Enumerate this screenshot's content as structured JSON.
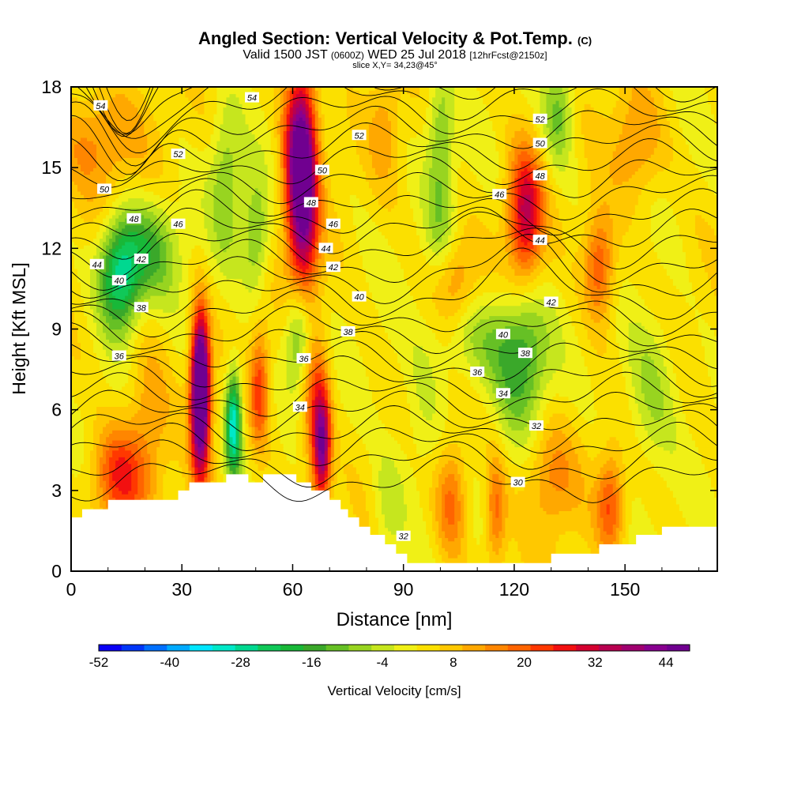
{
  "title": {
    "main": "Angled Section: Vertical Velocity & Pot.Temp.",
    "main_unit": "(C)",
    "valid_prefix": "Valid 1500 JST",
    "valid_utc": "(0600Z)",
    "valid_date": "WED 25 Jul 2018",
    "forecast": "[12hrFcst@2150z]",
    "slice": "slice X,Y= 34,23@45°"
  },
  "chart_data": {
    "type": "heatmap",
    "xlabel": "Distance [nm]",
    "ylabel": "Height [Kft MSL]",
    "xlim": [
      0,
      175
    ],
    "ylim": [
      0,
      18
    ],
    "x_ticks": [
      "0",
      "30",
      "60",
      "90",
      "120",
      "150"
    ],
    "y_ticks": [
      "0",
      "3",
      "6",
      "9",
      "12",
      "15",
      "18"
    ],
    "colorbar": {
      "label": "Vertical Velocity [cm/s]",
      "tick_labels": [
        "-52",
        "-40",
        "-28",
        "-16",
        "-4",
        "8",
        "20",
        "32",
        "44"
      ],
      "min": -52,
      "max": 48,
      "colors": [
        "#0a00f5",
        "#0036f8",
        "#0070ff",
        "#00aaff",
        "#00e6ff",
        "#00e8c8",
        "#00d890",
        "#10c858",
        "#18b838",
        "#3aa82a",
        "#66c025",
        "#98d420",
        "#c6e61e",
        "#f0f016",
        "#fbe000",
        "#ffc800",
        "#ffa800",
        "#ff8600",
        "#ff6400",
        "#ff3800",
        "#f21010",
        "#d40030",
        "#b80050",
        "#a00070",
        "#880090",
        "#700090"
      ]
    },
    "theta_contour_labels": [
      {
        "v": "54",
        "x": 8,
        "y": 17.3
      },
      {
        "v": "54",
        "x": 49,
        "y": 17.6
      },
      {
        "v": "52",
        "x": 78,
        "y": 16.2
      },
      {
        "v": "52",
        "x": 127,
        "y": 16.8
      },
      {
        "v": "52",
        "x": 29,
        "y": 15.5
      },
      {
        "v": "50",
        "x": 127,
        "y": 15.9
      },
      {
        "v": "50",
        "x": 68,
        "y": 14.9
      },
      {
        "v": "50",
        "x": 9,
        "y": 14.2
      },
      {
        "v": "48",
        "x": 127,
        "y": 14.7
      },
      {
        "v": "48",
        "x": 65,
        "y": 13.7
      },
      {
        "v": "48",
        "x": 17,
        "y": 13.1
      },
      {
        "v": "46",
        "x": 116,
        "y": 14.0
      },
      {
        "v": "46",
        "x": 29,
        "y": 12.9
      },
      {
        "v": "46",
        "x": 71,
        "y": 12.9
      },
      {
        "v": "44",
        "x": 7,
        "y": 11.4
      },
      {
        "v": "44",
        "x": 69,
        "y": 12.0
      },
      {
        "v": "44",
        "x": 127,
        "y": 12.3
      },
      {
        "v": "42",
        "x": 19,
        "y": 11.6
      },
      {
        "v": "42",
        "x": 71,
        "y": 11.3
      },
      {
        "v": "42",
        "x": 130,
        "y": 10.0
      },
      {
        "v": "40",
        "x": 13,
        "y": 10.8
      },
      {
        "v": "40",
        "x": 78,
        "y": 10.2
      },
      {
        "v": "40",
        "x": 117,
        "y": 8.8
      },
      {
        "v": "38",
        "x": 19,
        "y": 9.8
      },
      {
        "v": "38",
        "x": 75,
        "y": 8.9
      },
      {
        "v": "38",
        "x": 123,
        "y": 8.1
      },
      {
        "v": "36",
        "x": 13,
        "y": 8.0
      },
      {
        "v": "36",
        "x": 63,
        "y": 7.9
      },
      {
        "v": "36",
        "x": 110,
        "y": 7.4
      },
      {
        "v": "34",
        "x": 62,
        "y": 6.1
      },
      {
        "v": "34",
        "x": 117,
        "y": 6.6
      },
      {
        "v": "32",
        "x": 126,
        "y": 5.4
      },
      {
        "v": "32",
        "x": 90,
        "y": 1.3
      },
      {
        "v": "30",
        "x": 121,
        "y": 3.3
      }
    ],
    "vertical_velocity_features": [
      {
        "x": 62,
        "y": 15.6,
        "sx": 3,
        "sy": 2.3,
        "a": 40
      },
      {
        "x": 63,
        "y": 12.8,
        "sx": 2.8,
        "sy": 2.6,
        "a": 26
      },
      {
        "x": 35,
        "y": 7.3,
        "sx": 1.7,
        "sy": 1.7,
        "a": 46
      },
      {
        "x": 35,
        "y": 5.5,
        "sx": 1.8,
        "sy": 2.0,
        "a": 28
      },
      {
        "x": 44,
        "y": 5.5,
        "sx": 1.5,
        "sy": 1.4,
        "a": -36
      },
      {
        "x": 51,
        "y": 6.8,
        "sx": 1.8,
        "sy": 1.5,
        "a": 20
      },
      {
        "x": 68,
        "y": 4.6,
        "sx": 1.6,
        "sy": 1.4,
        "a": 34
      },
      {
        "x": 66,
        "y": 6.2,
        "sx": 2.6,
        "sy": 2.2,
        "a": 18
      },
      {
        "x": 62,
        "y": 8.8,
        "sx": 2.7,
        "sy": 1.4,
        "a": -22
      },
      {
        "x": 13,
        "y": 10.9,
        "sx": 4,
        "sy": 1.4,
        "a": -28
      },
      {
        "x": 21,
        "y": 12.0,
        "sx": 6,
        "sy": 1.3,
        "a": -16
      },
      {
        "x": 123,
        "y": 13.3,
        "sx": 3.3,
        "sy": 1.7,
        "a": 30
      },
      {
        "x": 122,
        "y": 7.8,
        "sx": 5,
        "sy": 1.8,
        "a": -18
      },
      {
        "x": 110,
        "y": 8.6,
        "sx": 8,
        "sy": 1.2,
        "a": -10
      },
      {
        "x": 143,
        "y": 11.4,
        "sx": 3,
        "sy": 1.4,
        "a": 20
      },
      {
        "x": 13,
        "y": 3.5,
        "sx": 5,
        "sy": 1.3,
        "a": 22
      },
      {
        "x": 21,
        "y": 6.0,
        "sx": 4,
        "sy": 2.0,
        "a": 10
      },
      {
        "x": 132,
        "y": 17.0,
        "sx": 3,
        "sy": 1.4,
        "a": -14
      },
      {
        "x": 42,
        "y": 14.5,
        "sx": 3,
        "sy": 2.0,
        "a": -12
      },
      {
        "x": 50,
        "y": 12.5,
        "sx": 2.5,
        "sy": 1.5,
        "a": -14
      },
      {
        "x": 86,
        "y": 2.5,
        "sx": 3,
        "sy": 1.5,
        "a": -8
      },
      {
        "x": 103,
        "y": 2.6,
        "sx": 3,
        "sy": 1.5,
        "a": 16
      },
      {
        "x": 115,
        "y": 2.2,
        "sx": 2,
        "sy": 1.5,
        "a": 16
      },
      {
        "x": 130,
        "y": 3.5,
        "sx": 5,
        "sy": 1.5,
        "a": 12
      },
      {
        "x": 146,
        "y": 2.5,
        "sx": 2.6,
        "sy": 1.3,
        "a": 18
      },
      {
        "x": 157,
        "y": 6.8,
        "sx": 5,
        "sy": 2.0,
        "a": -10
      },
      {
        "x": 100,
        "y": 12.8,
        "sx": 3,
        "sy": 1.5,
        "a": -8
      },
      {
        "x": 100,
        "y": 16.3,
        "sx": 2.5,
        "sy": 1.8,
        "a": -12
      },
      {
        "x": 95,
        "y": 5.5,
        "sx": 4,
        "sy": 2.0,
        "a": -6
      },
      {
        "x": 7,
        "y": 16.0,
        "sx": 8,
        "sy": 1.5,
        "a": 12
      },
      {
        "x": 153,
        "y": 15.8,
        "sx": 5,
        "sy": 1.5,
        "a": 12
      },
      {
        "x": 104,
        "y": 10.8,
        "sx": 4,
        "sy": 1.2,
        "a": 12
      },
      {
        "x": 85,
        "y": 16.5,
        "sx": 3,
        "sy": 1.5,
        "a": 8
      }
    ],
    "terrain_height": [
      {
        "x": 0,
        "y": 2.0
      },
      {
        "x": 3,
        "y": 2.3
      },
      {
        "x": 10,
        "y": 2.65
      },
      {
        "x": 29,
        "y": 3.0
      },
      {
        "x": 32,
        "y": 3.3
      },
      {
        "x": 42,
        "y": 3.6
      },
      {
        "x": 48,
        "y": 3.3
      },
      {
        "x": 52,
        "y": 3.6
      },
      {
        "x": 61,
        "y": 3.3
      },
      {
        "x": 65,
        "y": 3.0
      },
      {
        "x": 70,
        "y": 2.65
      },
      {
        "x": 73,
        "y": 2.3
      },
      {
        "x": 75,
        "y": 2.0
      },
      {
        "x": 78,
        "y": 1.65
      },
      {
        "x": 81,
        "y": 1.35
      },
      {
        "x": 85,
        "y": 1.0
      },
      {
        "x": 88,
        "y": 0.65
      },
      {
        "x": 91,
        "y": 0.3
      },
      {
        "x": 130,
        "y": 0.65
      },
      {
        "x": 143,
        "y": 1.0
      },
      {
        "x": 153,
        "y": 1.35
      },
      {
        "x": 160,
        "y": 1.65
      },
      {
        "x": 175,
        "y": 1.65
      }
    ]
  }
}
